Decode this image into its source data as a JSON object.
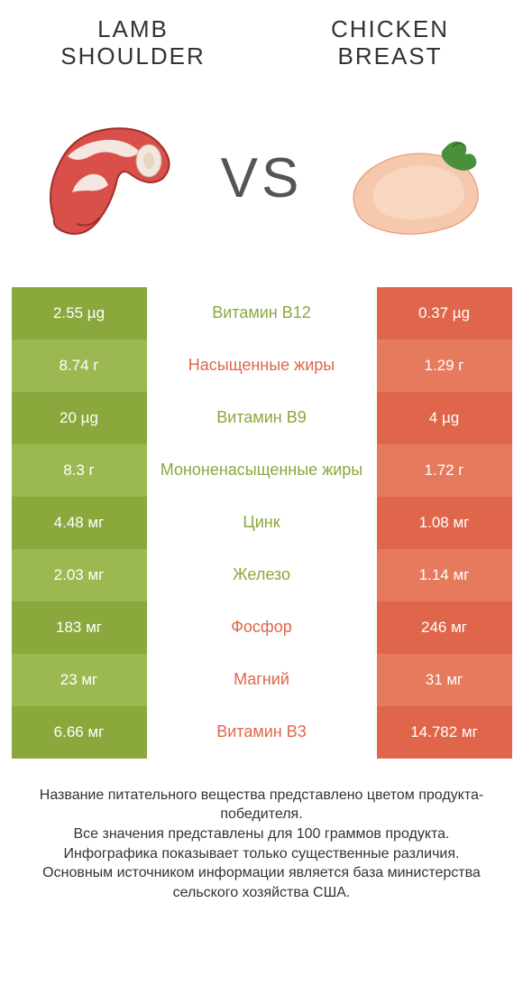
{
  "colors": {
    "left_dark": "#8aa83c",
    "left_light": "#9cb951",
    "right_dark": "#e0664b",
    "right_light": "#e67a5d",
    "mid_green": "#8aa83c",
    "mid_red": "#e0664b",
    "title_text": "#333333",
    "vs_text": "#555555"
  },
  "header": {
    "left_title": "LAMB SHOULDER",
    "right_title": "CHICKEN BREAST",
    "vs": "VS"
  },
  "rows": [
    {
      "left": "2.55 µg",
      "mid": "Витамин B12",
      "right": "0.37 µg",
      "winner": "left"
    },
    {
      "left": "8.74 г",
      "mid": "Насыщенные жиры",
      "right": "1.29 г",
      "winner": "right"
    },
    {
      "left": "20 µg",
      "mid": "Витамин B9",
      "right": "4 µg",
      "winner": "left"
    },
    {
      "left": "8.3 г",
      "mid": "Мононенасыщенные жиры",
      "right": "1.72 г",
      "winner": "left"
    },
    {
      "left": "4.48 мг",
      "mid": "Цинк",
      "right": "1.08 мг",
      "winner": "left"
    },
    {
      "left": "2.03 мг",
      "mid": "Железо",
      "right": "1.14 мг",
      "winner": "left"
    },
    {
      "left": "183 мг",
      "mid": "Фосфор",
      "right": "246 мг",
      "winner": "right"
    },
    {
      "left": "23 мг",
      "mid": "Магний",
      "right": "31 мг",
      "winner": "right"
    },
    {
      "left": "6.66 мг",
      "mid": "Витамин B3",
      "right": "14.782 мг",
      "winner": "right"
    }
  ],
  "footer": {
    "line1": "Название питательного вещества представлено цветом продукта-победителя.",
    "line2": "Все значения представлены для 100 граммов продукта.",
    "line3": "Инфографика показывает только существенные различия.",
    "line4": "Основным источником информации является база министерства сельского хозяйства США."
  }
}
